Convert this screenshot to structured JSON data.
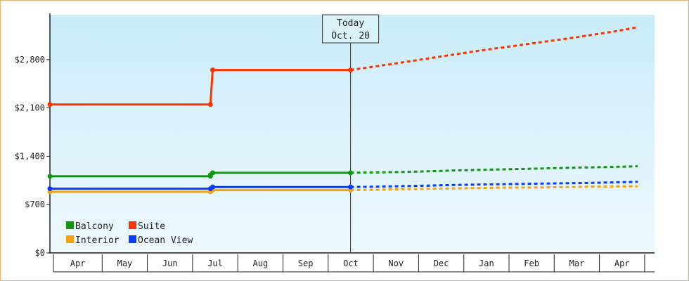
{
  "chart_data": {
    "type": "line",
    "ylim": [
      0,
      3450
    ],
    "y_ticks": [
      {
        "value": 0,
        "label": "$0"
      },
      {
        "value": 700,
        "label": "$700"
      },
      {
        "value": 1400,
        "label": "$1,400"
      },
      {
        "value": 2100,
        "label": "$2,100"
      },
      {
        "value": 2800,
        "label": "$2,800"
      }
    ],
    "months": [
      "Apr",
      "May",
      "Jun",
      "Jul",
      "Aug",
      "Sep",
      "Oct",
      "Nov",
      "Dec",
      "Jan",
      "Feb",
      "Mar",
      "Apr"
    ],
    "today": {
      "line1": "Today",
      "line2": "Oct. 20",
      "x": 6.65
    },
    "legend": {
      "placement": "bottom-left"
    },
    "series": [
      {
        "name": "Balcony",
        "color": "#109610",
        "actual": [
          [
            0,
            1110
          ],
          [
            3.55,
            1110
          ],
          [
            3.55,
            1130
          ],
          [
            3.6,
            1160
          ],
          [
            6.65,
            1160
          ]
        ],
        "forecast": [
          [
            6.65,
            1160
          ],
          [
            7.2,
            1165
          ],
          [
            8,
            1175
          ],
          [
            9,
            1195
          ],
          [
            10,
            1210
          ],
          [
            11,
            1225
          ],
          [
            12,
            1240
          ],
          [
            13,
            1255
          ]
        ]
      },
      {
        "name": "Suite",
        "color": "#ff3300",
        "actual": [
          [
            0,
            2150
          ],
          [
            3.55,
            2150
          ],
          [
            3.6,
            2650
          ],
          [
            6.65,
            2650
          ]
        ],
        "forecast": [
          [
            6.65,
            2650
          ],
          [
            7.5,
            2730
          ],
          [
            8.5,
            2830
          ],
          [
            9.5,
            2930
          ],
          [
            10.5,
            3020
          ],
          [
            11.5,
            3110
          ],
          [
            12.5,
            3210
          ],
          [
            13,
            3270
          ]
        ]
      },
      {
        "name": "Interior",
        "color": "#f5a312",
        "actual": [
          [
            0,
            885
          ],
          [
            3.55,
            885
          ],
          [
            3.6,
            910
          ],
          [
            6.65,
            910
          ]
        ],
        "forecast": [
          [
            6.65,
            910
          ],
          [
            7.2,
            915
          ],
          [
            8,
            925
          ],
          [
            9,
            935
          ],
          [
            10,
            945
          ],
          [
            11,
            950
          ],
          [
            12,
            960
          ],
          [
            13,
            965
          ]
        ]
      },
      {
        "name": "Ocean View",
        "color": "#0a3cff",
        "actual": [
          [
            0,
            930
          ],
          [
            3.55,
            930
          ],
          [
            3.6,
            955
          ],
          [
            6.65,
            955
          ]
        ],
        "forecast": [
          [
            6.65,
            955
          ],
          [
            7.2,
            960
          ],
          [
            8,
            970
          ],
          [
            9,
            985
          ],
          [
            10,
            995
          ],
          [
            11,
            1005
          ],
          [
            12,
            1015
          ],
          [
            13,
            1030
          ]
        ]
      }
    ]
  }
}
